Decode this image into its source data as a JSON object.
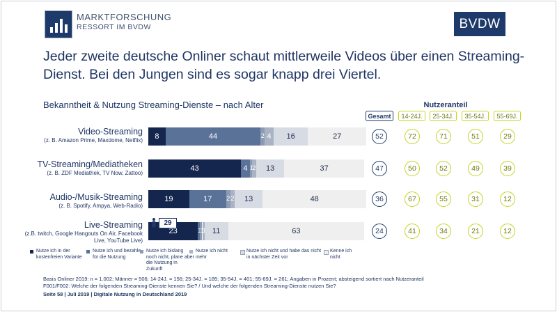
{
  "header": {
    "logo_line1": "MARKTFORSCHUNG",
    "logo_line2": "RESSORT IM BVDW",
    "brand": "BVDW"
  },
  "title": "Jeder zweite deutsche Onliner schaut mittlerweile Videos über einen Streaming-Dienst. Bei den Jungen sind es sogar knapp drei Viertel.",
  "subtitle": "Bekanntheit & Nutzung Streaming-Dienste – nach Alter",
  "nutzeranteil": {
    "title": "Nutzeranteil",
    "columns": [
      "Gesamt",
      "14-24J.",
      "25-34J.",
      "35-54J.",
      "55-69J."
    ]
  },
  "chart_data": {
    "type": "bar",
    "orientation": "horizontal",
    "stacked": true,
    "title": "Bekanntheit & Nutzung Streaming-Dienste – nach Alter",
    "unit": "Prozent",
    "categories": [
      "Video-Streaming",
      "TV-Streaming/Mediatheken",
      "Audio-/Musik-Streaming",
      "Live-Streaming"
    ],
    "category_examples": [
      "(z. B. Amazon Prime, Maxdome, Netflix)",
      "(z. B. ZDF Mediathek, TV Now, Zattoo)",
      "(z. B. Spotify, Ampya, Web-Radio)",
      "(z.B. twitch, Google Hangouts On Air, Facebook Live, YouTube Live)"
    ],
    "series": [
      {
        "name": "Nutze ich in der kostenfreien Variante",
        "color": "#14264d",
        "text_color": "#ffffff",
        "values": [
          8,
          43,
          19,
          23
        ]
      },
      {
        "name": "Nutze ich und bezahle für die Nutzung",
        "color": "#5a7198",
        "text_color": "#ffffff",
        "values": [
          44,
          4,
          17,
          1
        ]
      },
      {
        "name": "Nutze ich bislang noch nicht, plane aber die Nutzung in Zukunft",
        "color": "#8c9ab3",
        "text_color": "#ffffff",
        "values": [
          2,
          1,
          2,
          1
        ]
      },
      {
        "name": "Nutze ich nicht mehr",
        "color": "#a9b3c4",
        "text_color": "#ffffff",
        "values": [
          4,
          2,
          2,
          1
        ]
      },
      {
        "name": "Nutze ich nicht und habe das nicht in nächster Zeit vor",
        "color": "#d6dbe4",
        "text_color": "#1f2d4d",
        "values": [
          16,
          13,
          13,
          11
        ]
      },
      {
        "name": "Kenne ich nicht",
        "color": "#efefef",
        "text_color": "#1f2d4d",
        "values": [
          27,
          37,
          48,
          63
        ]
      }
    ],
    "segment_labels": [
      [
        "8",
        "44",
        "2",
        "4",
        "16",
        "27"
      ],
      [
        "43",
        "4",
        "1",
        "2",
        "13",
        "37"
      ],
      [
        "19",
        "17",
        "2",
        "2",
        "13",
        "48"
      ],
      [
        "23",
        "1",
        "1",
        "1",
        "11",
        "63"
      ]
    ],
    "xlim": [
      0,
      100
    ],
    "callout": {
      "label": "29",
      "category": "Live-Streaming"
    },
    "nutzeranteil_values": [
      [
        52,
        72,
        71,
        51,
        29
      ],
      [
        47,
        50,
        52,
        49,
        39
      ],
      [
        36,
        67,
        55,
        31,
        12
      ],
      [
        24,
        41,
        34,
        21,
        12
      ]
    ]
  },
  "footnotes": [
    "Basis Onliner 2019: n = 1.002; Männer = 506; 14-24J. = 156; 25-34J. = 185; 35-54J. = 401; 55-69J. = 261; Angaben in Prozent; absteigend sortiert nach Nutzeranteil",
    "F001/F002: Welche der folgenden Streaming-Dienste kennen Sie? / Und welche der folgenden Streaming-Dienste nutzen Sie?"
  ],
  "footer": "Seite 58 | Juli 2019 | Digitale Nutzung in Deutschland 2019"
}
